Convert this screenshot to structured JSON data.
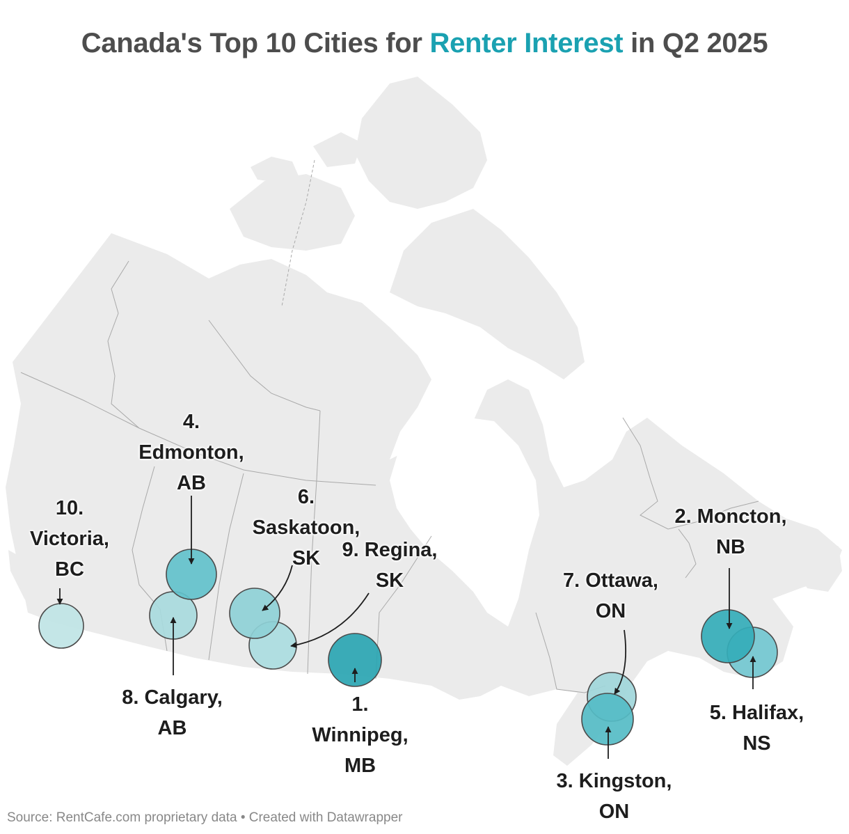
{
  "title": {
    "prefix": "Canada's Top 10 Cities for ",
    "highlight": "Renter Interest",
    "suffix": " in Q2 2025",
    "highlight_color": "#1aa1b1"
  },
  "source": "Source: RentCafe.com proprietary data • Created with Datawrapper",
  "map_colors": {
    "land": "#ebebeb",
    "border": "#a9a9a9",
    "arrow": "#1d1d1d"
  },
  "cities": [
    {
      "rank": 1,
      "name": "Winnipeg",
      "province": "MB",
      "label_lines": [
        "1.",
        "Winnipeg,",
        "MB"
      ],
      "color": "#2aa5b2"
    },
    {
      "rank": 2,
      "name": "Moncton",
      "province": "NB",
      "label_lines": [
        "2. Moncton,",
        "NB"
      ],
      "color": "#34acb8"
    },
    {
      "rank": 3,
      "name": "Kingston",
      "province": "ON",
      "label_lines": [
        "3. Kingston,",
        "ON"
      ],
      "color": "#55bcc6"
    },
    {
      "rank": 4,
      "name": "Edmonton",
      "province": "AB",
      "label_lines": [
        "4.",
        "Edmonton,",
        "AB"
      ],
      "color": "#62c1cb"
    },
    {
      "rank": 5,
      "name": "Halifax",
      "province": "NS",
      "label_lines": [
        "5. Halifax,",
        "NS"
      ],
      "color": "#72c7d0"
    },
    {
      "rank": 6,
      "name": "Saskatoon",
      "province": "SK",
      "label_lines": [
        "6.",
        "Saskatoon,",
        "SK"
      ],
      "color": "#8ed0d6"
    },
    {
      "rank": 7,
      "name": "Ottawa",
      "province": "ON",
      "label_lines": [
        "7. Ottawa,",
        "ON"
      ],
      "color": "#9fd6da"
    },
    {
      "rank": 8,
      "name": "Calgary",
      "province": "AB",
      "label_lines": [
        "8. Calgary,",
        "AB"
      ],
      "color": "#a8dadd"
    },
    {
      "rank": 9,
      "name": "Regina",
      "province": "SK",
      "label_lines": [
        "9. Regina,",
        "SK"
      ],
      "color": "#aadcdf"
    },
    {
      "rank": 10,
      "name": "Victoria",
      "province": "BC",
      "label_lines": [
        "10.",
        "Victoria,",
        "BC"
      ],
      "color": "#bfe4e5"
    }
  ]
}
